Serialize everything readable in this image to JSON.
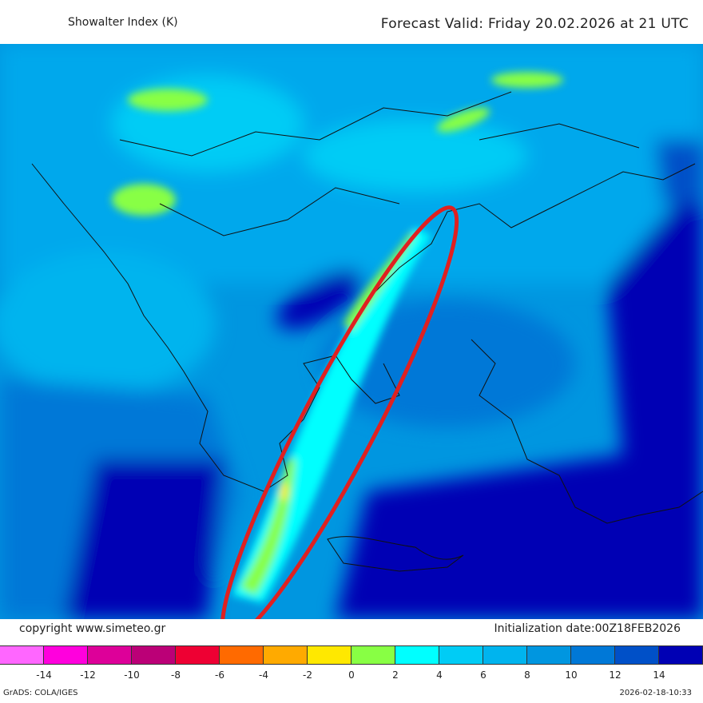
{
  "header": {
    "title": "Showalter Index (K)",
    "forecast_valid": "Forecast Valid:  Friday 20.02.2026 at 21 UTC"
  },
  "footer": {
    "copyright": "copyright www.simeteo.gr",
    "initialization": "Initialization date:00Z18FEB2026",
    "software": "GrADS: COLA/IGES",
    "timestamp": "2026-02-18-10:33"
  },
  "colorbar": {
    "colors": [
      "#ff66ff",
      "#ff00dd",
      "#dd0099",
      "#bb0077",
      "#ee0033",
      "#ff6a00",
      "#ffaa00",
      "#ffe800",
      "#88ff44",
      "#00ffff",
      "#00ccf5",
      "#00b4ee",
      "#0096e0",
      "#0078d7",
      "#0050c8",
      "#0000b4"
    ],
    "labels": [
      "-14",
      "-12",
      "-10",
      "-8",
      "-6",
      "-4",
      "-2",
      "0",
      "2",
      "4",
      "6",
      "8",
      "10",
      "12",
      "14"
    ]
  },
  "annotation": {
    "shape": "ellipse",
    "color": "#e02020"
  }
}
